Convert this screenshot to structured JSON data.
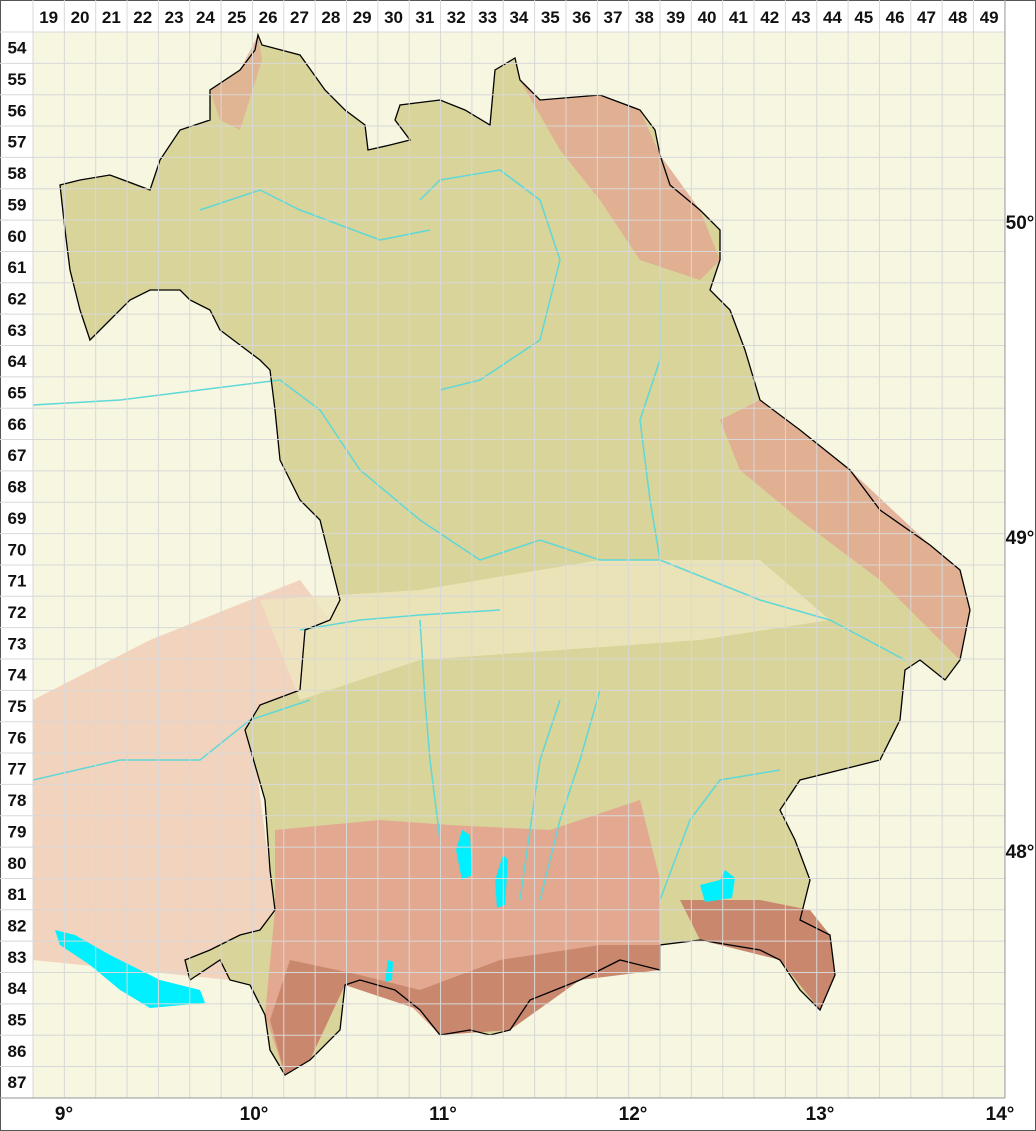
{
  "map": {
    "columns": [
      "19",
      "20",
      "21",
      "22",
      "23",
      "24",
      "25",
      "26",
      "27",
      "28",
      "29",
      "30",
      "31",
      "32",
      "33",
      "34",
      "35",
      "36",
      "37",
      "38",
      "39",
      "40",
      "41",
      "42",
      "43",
      "44",
      "45",
      "46",
      "47",
      "48",
      "49"
    ],
    "rows": [
      "54",
      "55",
      "56",
      "57",
      "58",
      "59",
      "60",
      "61",
      "62",
      "63",
      "64",
      "65",
      "66",
      "67",
      "68",
      "69",
      "70",
      "71",
      "72",
      "73",
      "74",
      "75",
      "76",
      "77",
      "78",
      "79",
      "80",
      "81",
      "82",
      "83",
      "84",
      "85",
      "86",
      "87"
    ],
    "longitude_labels": [
      "9°",
      "10°",
      "11°",
      "12°",
      "13°",
      "14°"
    ],
    "latitude_labels": [
      "50°",
      "49°",
      "48°"
    ],
    "colors": {
      "background": "#fdfdf6",
      "outside_region": "#f4f1d4",
      "lowland": "#ede6bf",
      "hills": "#d9d49a",
      "upland": "#e2a890",
      "alps": "#c9876e",
      "water": "#00f0ff",
      "rivers": "#5fd8d8",
      "border": "#000000",
      "grid": "#d8d8d8"
    }
  }
}
